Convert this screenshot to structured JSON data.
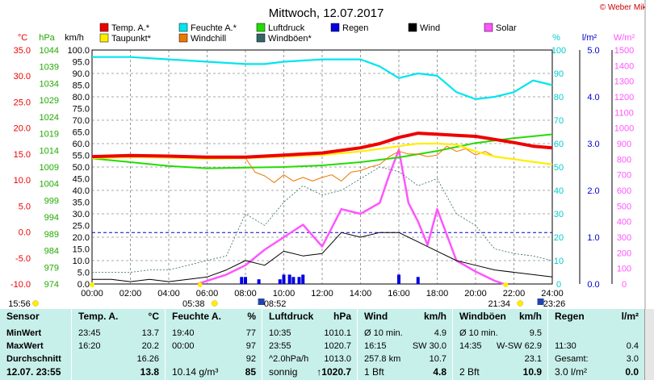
{
  "title": "Mittwoch, 12.07.2017",
  "copyright": "© Weber Mike",
  "legend": [
    {
      "label": "Temp. A.*",
      "color": "#ee0000"
    },
    {
      "label": "Feuchte A.*",
      "color": "#00e5ee"
    },
    {
      "label": "Luftdruck",
      "color": "#22dd00"
    },
    {
      "label": "Regen",
      "color": "#0000dd"
    },
    {
      "label": "Wind",
      "color": "#000000"
    },
    {
      "label": "Solar",
      "color": "#ff55ff"
    },
    {
      "label": "Taupunkt*",
      "color": "#ffee00"
    },
    {
      "label": "Windchill",
      "color": "#ee7700"
    },
    {
      "label": "Windböen*",
      "color": "#336666"
    }
  ],
  "unit_labels": {
    "temp": "°C",
    "press": "hPa",
    "wind": "km/h",
    "hum": "%",
    "rain": "l/m²",
    "solar": "W/m²"
  },
  "events": {
    "sunrise": "05:38",
    "sunset": "21:34",
    "moonrise": "08:52",
    "moonset": "23:26",
    "first_time": "15:56"
  },
  "chart_data": {
    "type": "line",
    "title": "Mittwoch, 12.07.2017",
    "x_ticks": [
      "00:00",
      "02:00",
      "04:00",
      "06:00",
      "08:00",
      "10:00",
      "12:00",
      "14:00",
      "16:00",
      "18:00",
      "20:00",
      "22:00",
      "24:00"
    ],
    "x_range_hours": [
      0,
      24
    ],
    "axes": {
      "temp": {
        "label": "°C",
        "range": [
          -10,
          35
        ],
        "ticks": [
          "35.0",
          "30.0",
          "25.0",
          "20.0",
          "15.0",
          "10.0",
          "5.0",
          "0.0",
          "-5.0",
          "-10.0"
        ]
      },
      "pressure": {
        "label": "hPa",
        "range": [
          974,
          1047
        ],
        "ticks": [
          "1044",
          "1039",
          "1034",
          "1029",
          "1024",
          "1019",
          "1014",
          "1009",
          "1004",
          "999",
          "994",
          "989",
          "984",
          "979",
          "974"
        ]
      },
      "wind": {
        "label": "km/h",
        "range": [
          0,
          100
        ],
        "ticks": [
          "100.0",
          "95.0",
          "90.0",
          "85.0",
          "80.0",
          "75.0",
          "70.0",
          "65.0",
          "60.0",
          "55.0",
          "50.0",
          "45.0",
          "40.0",
          "35.0",
          "30.0",
          "25.0",
          "20.0",
          "15.0",
          "10.0",
          "5.0",
          "0.0"
        ]
      },
      "humidity": {
        "label": "%",
        "range": [
          0,
          100
        ],
        "ticks": [
          "100",
          "90",
          "80",
          "70",
          "60",
          "50",
          "40",
          "30",
          "20",
          "10",
          "0"
        ]
      },
      "rain": {
        "label": "l/m²",
        "range": [
          0,
          5
        ],
        "ticks": [
          "5.0",
          "4.0",
          "3.0",
          "2.0",
          "1.0",
          "0.0"
        ]
      },
      "solar": {
        "label": "W/m²",
        "range": [
          0,
          1500
        ],
        "ticks": [
          "1500",
          "1400",
          "1300",
          "1200",
          "1100",
          "1000",
          "900",
          "800",
          "700",
          "600",
          "500",
          "400",
          "300",
          "200",
          "100",
          "0"
        ]
      }
    },
    "series": [
      {
        "name": "Temp. A.*",
        "axis": "temp",
        "x": [
          0,
          2,
          4,
          6,
          8,
          10,
          12,
          14,
          15,
          16,
          17,
          18,
          19,
          20,
          21,
          22,
          23,
          24
        ],
        "y": [
          14.5,
          14.7,
          14.6,
          14.4,
          14.4,
          14.8,
          15.2,
          16.2,
          17.0,
          18.2,
          19.0,
          18.8,
          18.6,
          18.4,
          17.8,
          17.2,
          16.5,
          16.2
        ]
      },
      {
        "name": "Feuchte A.*",
        "axis": "humidity",
        "x": [
          0,
          2,
          4,
          6,
          8,
          9,
          10,
          12,
          14,
          15,
          16,
          17,
          18,
          19,
          20,
          21,
          22,
          23,
          24
        ],
        "y": [
          97,
          97,
          96,
          95,
          94,
          94,
          95,
          96,
          96,
          93,
          88,
          90,
          89,
          82,
          79,
          80,
          82,
          87,
          85
        ]
      },
      {
        "name": "Luftdruck",
        "axis": "pressure",
        "x": [
          0,
          2,
          4,
          6,
          8,
          10,
          12,
          14,
          16,
          18,
          20,
          22,
          24
        ],
        "y": [
          1013.2,
          1012.0,
          1010.8,
          1010.1,
          1010.3,
          1010.5,
          1011.0,
          1012.0,
          1013.5,
          1015.5,
          1018.0,
          1019.5,
          1020.7
        ]
      },
      {
        "name": "Taupunkt*",
        "axis": "temp",
        "x": [
          0,
          2,
          4,
          6,
          8,
          10,
          12,
          14,
          16,
          17,
          18,
          19,
          20,
          21,
          22,
          23,
          24
        ],
        "y": [
          14.2,
          14.4,
          14.3,
          14.1,
          14.2,
          14.5,
          14.8,
          15.5,
          16.5,
          17.0,
          17.0,
          16.8,
          15.5,
          14.5,
          14.0,
          13.5,
          13.0
        ]
      },
      {
        "name": "Windchill",
        "axis": "temp",
        "x": [
          8,
          8.5,
          9,
          9.5,
          10,
          10.5,
          11,
          11.5,
          12,
          12.5,
          13,
          13.5,
          14,
          14.5,
          15,
          15.5,
          16,
          16.5,
          17,
          17.5,
          18,
          18.5,
          19,
          19.5,
          20,
          20.5,
          21
        ],
        "y": [
          14.2,
          11.5,
          10.8,
          9.5,
          11.0,
          9.8,
          10.5,
          9.8,
          10.5,
          11.0,
          9.8,
          11.5,
          11.8,
          12.5,
          13.0,
          14.5,
          15.5,
          15.0,
          15.0,
          14.5,
          14.8,
          16.5,
          15.5,
          16.0,
          14.8,
          15.5,
          14.5
        ]
      },
      {
        "name": "Windböen*",
        "axis": "wind",
        "x": [
          0,
          1,
          2,
          3,
          4,
          5,
          6,
          7,
          8,
          9,
          10,
          11,
          12,
          13,
          14,
          15,
          16,
          17,
          18,
          19,
          20,
          21,
          22,
          23,
          24
        ],
        "y": [
          5,
          5,
          5,
          6,
          6,
          8,
          10,
          12,
          30,
          25,
          35,
          42,
          38,
          40,
          45,
          50,
          48,
          42,
          45,
          30,
          25,
          15,
          13,
          12,
          10
        ]
      },
      {
        "name": "Wind",
        "axis": "wind",
        "x": [
          0,
          1,
          2,
          3,
          4,
          5,
          6,
          7,
          8,
          9,
          10,
          11,
          12,
          13,
          14,
          15,
          16,
          17,
          18,
          19,
          20,
          21,
          22,
          23,
          24
        ],
        "y": [
          2,
          2,
          1,
          2,
          1,
          2,
          3,
          6,
          10,
          8,
          14,
          12,
          13,
          22,
          20,
          22,
          22,
          18,
          14,
          10,
          8,
          6,
          5,
          4,
          3
        ]
      },
      {
        "name": "Solar",
        "axis": "solar",
        "x": [
          5.5,
          6,
          7,
          8,
          9,
          10,
          11,
          12,
          13,
          14,
          15,
          15.5,
          16,
          16.5,
          17,
          17.5,
          18,
          19,
          20,
          21,
          21.5
        ],
        "y": [
          0,
          20,
          60,
          120,
          220,
          300,
          380,
          240,
          480,
          450,
          520,
          700,
          860,
          520,
          400,
          250,
          480,
          150,
          80,
          20,
          0
        ]
      },
      {
        "name": "Regen",
        "axis": "rain",
        "type": "bar",
        "x": [
          7.8,
          8.0,
          8.7,
          9.8,
          10.0,
          10.3,
          10.5,
          10.8,
          11.0,
          16.0,
          17.0
        ],
        "y": [
          0.15,
          0.15,
          0.1,
          0.1,
          0.2,
          0.2,
          0.15,
          0.15,
          0.2,
          0.2,
          0.15
        ]
      }
    ],
    "reference_lines": [
      {
        "axis": "rain",
        "value": 1.1
      }
    ]
  },
  "stats": {
    "headers": {
      "sensor": "Sensor",
      "temp": "Temp. A.",
      "temp_unit": "°C",
      "hum": "Feuchte A.",
      "hum_unit": "%",
      "press": "Luftdruck",
      "press_unit": "hPa",
      "wind": "Wind",
      "wind_unit": "km/h",
      "gust": "Windböen",
      "gust_unit": "km/h",
      "rain": "Regen",
      "rain_unit": "l/m²"
    },
    "row_labels": [
      "MinWert",
      "MaxWert",
      "Durchschnitt",
      "12.07. 23:55"
    ],
    "temp": [
      [
        "23:45",
        "13.7"
      ],
      [
        "16:20",
        "20.2"
      ],
      [
        "",
        "16.26"
      ],
      [
        "",
        "13.8"
      ]
    ],
    "hum": [
      [
        "19:40",
        "77"
      ],
      [
        "00:00",
        "97"
      ],
      [
        "",
        "92"
      ],
      [
        "10.14 g/m³",
        "85"
      ]
    ],
    "press": [
      [
        "10:35",
        "1010.1"
      ],
      [
        "23:55",
        "1020.7"
      ],
      [
        "^2.0hPa/h",
        "1013.0"
      ],
      [
        "sonnig",
        "↑1020.7"
      ]
    ],
    "wind": [
      [
        "Ø 10 min.",
        "4.9"
      ],
      [
        "16:15",
        "SW 30.0"
      ],
      [
        "257.8 km",
        "10.7"
      ],
      [
        "1 Bft",
        "4.8"
      ]
    ],
    "gust": [
      [
        "Ø 10 min.",
        "9.5"
      ],
      [
        "14:35",
        "W-SW 62.9"
      ],
      [
        "",
        "23.1"
      ],
      [
        "2 Bft",
        "10.9"
      ]
    ],
    "rain": [
      [
        "",
        ""
      ],
      [
        "11:30",
        "0.4"
      ],
      [
        "Gesamt:",
        "3.0"
      ],
      [
        "3.0 l/m²",
        "0.0"
      ]
    ]
  }
}
